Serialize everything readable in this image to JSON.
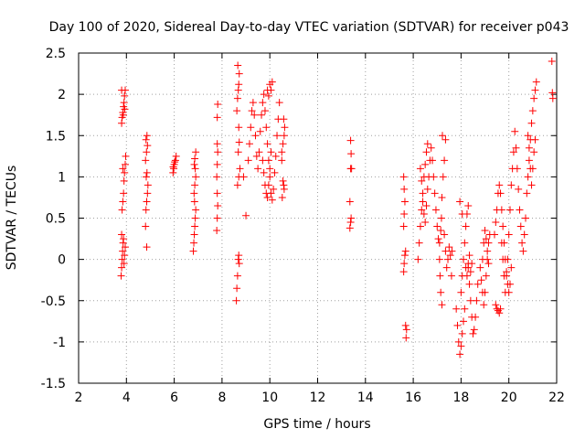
{
  "chart_data": {
    "type": "scatter",
    "title": "Day 100 of 2020, Sidereal Day-to-day VTEC variation (SDTVAR) for receiver p043",
    "xlabel": "GPS time / hours",
    "ylabel": "SDTVAR / TECUs",
    "xlim": [
      2,
      22
    ],
    "ylim": [
      -1.5,
      2.5
    ],
    "x_ticks": [
      2,
      4,
      6,
      8,
      10,
      12,
      14,
      16,
      18,
      20,
      22
    ],
    "x_tick_labels": [
      "2",
      "4",
      "6",
      "8",
      "10",
      "12",
      "14",
      "16",
      "18",
      "20",
      "22"
    ],
    "y_ticks": [
      -1.5,
      -1,
      -0.5,
      0,
      0.5,
      1,
      1.5,
      2,
      2.5
    ],
    "y_tick_labels": [
      "-1.5",
      "-1",
      "-0.5",
      "0",
      "0.5",
      "1",
      "1.5",
      "2",
      "2.5"
    ],
    "grid": true,
    "marker": "+",
    "color": "#ff0000",
    "series": [
      {
        "name": "SDTVAR",
        "points": [
          [
            3.78,
            -0.2
          ],
          [
            3.8,
            -0.1
          ],
          [
            3.82,
            0.0
          ],
          [
            3.84,
            0.1
          ],
          [
            3.86,
            0.2
          ],
          [
            3.88,
            0.25
          ],
          [
            3.8,
            0.3
          ],
          [
            3.9,
            -0.05
          ],
          [
            3.92,
            0.05
          ],
          [
            3.95,
            0.15
          ],
          [
            3.82,
            0.6
          ],
          [
            3.85,
            0.7
          ],
          [
            3.88,
            0.8
          ],
          [
            3.9,
            0.95
          ],
          [
            3.92,
            1.05
          ],
          [
            3.95,
            1.15
          ],
          [
            3.97,
            1.25
          ],
          [
            3.85,
            1.1
          ],
          [
            3.8,
            1.65
          ],
          [
            3.82,
            1.72
          ],
          [
            3.85,
            1.78
          ],
          [
            3.88,
            1.85
          ],
          [
            3.9,
            1.9
          ],
          [
            3.92,
            1.98
          ],
          [
            3.95,
            2.05
          ],
          [
            3.8,
            2.05
          ],
          [
            3.87,
            1.75
          ],
          [
            3.93,
            1.82
          ],
          [
            4.85,
            0.15
          ],
          [
            4.8,
            0.4
          ],
          [
            4.82,
            0.6
          ],
          [
            4.85,
            0.7
          ],
          [
            4.88,
            0.8
          ],
          [
            4.9,
            0.9
          ],
          [
            4.83,
            1.0
          ],
          [
            4.86,
            1.05
          ],
          [
            4.8,
            1.2
          ],
          [
            4.84,
            1.3
          ],
          [
            4.88,
            1.38
          ],
          [
            4.82,
            1.45
          ],
          [
            4.86,
            1.5
          ],
          [
            5.95,
            1.05
          ],
          [
            5.98,
            1.1
          ],
          [
            6.0,
            1.15
          ],
          [
            6.05,
            1.2
          ],
          [
            6.08,
            1.25
          ],
          [
            6.02,
            1.18
          ],
          [
            5.96,
            1.12
          ],
          [
            6.8,
            0.1
          ],
          [
            6.82,
            0.2
          ],
          [
            6.84,
            0.3
          ],
          [
            6.86,
            0.4
          ],
          [
            6.88,
            0.5
          ],
          [
            6.9,
            0.6
          ],
          [
            6.85,
            0.7
          ],
          [
            6.83,
            0.8
          ],
          [
            6.86,
            0.9
          ],
          [
            6.9,
            1.0
          ],
          [
            6.88,
            1.1
          ],
          [
            6.84,
            1.15
          ],
          [
            6.86,
            1.22
          ],
          [
            6.9,
            1.3
          ],
          [
            7.78,
            0.35
          ],
          [
            7.8,
            0.5
          ],
          [
            7.82,
            0.65
          ],
          [
            7.8,
            0.8
          ],
          [
            7.78,
            1.0
          ],
          [
            7.8,
            1.15
          ],
          [
            7.82,
            1.3
          ],
          [
            7.8,
            1.4
          ],
          [
            7.8,
            1.72
          ],
          [
            7.82,
            1.88
          ],
          [
            8.6,
            -0.5
          ],
          [
            8.62,
            -0.35
          ],
          [
            8.65,
            -0.2
          ],
          [
            8.68,
            0.0
          ],
          [
            8.7,
            0.05
          ],
          [
            8.72,
            -0.05
          ],
          [
            8.65,
            0.9
          ],
          [
            8.7,
            1.0
          ],
          [
            8.75,
            1.1
          ],
          [
            8.68,
            1.3
          ],
          [
            8.72,
            1.42
          ],
          [
            8.7,
            1.6
          ],
          [
            8.62,
            1.8
          ],
          [
            8.65,
            1.95
          ],
          [
            8.68,
            2.05
          ],
          [
            8.7,
            2.12
          ],
          [
            8.72,
            2.25
          ],
          [
            8.66,
            2.35
          ],
          [
            8.9,
            1.0
          ],
          [
            9.0,
            0.53
          ],
          [
            9.1,
            1.2
          ],
          [
            9.15,
            1.4
          ],
          [
            9.2,
            1.6
          ],
          [
            9.25,
            1.8
          ],
          [
            9.3,
            1.9
          ],
          [
            9.35,
            1.75
          ],
          [
            9.4,
            1.5
          ],
          [
            9.45,
            1.25
          ],
          [
            9.5,
            1.1
          ],
          [
            9.55,
            1.3
          ],
          [
            9.6,
            1.55
          ],
          [
            9.65,
            1.75
          ],
          [
            9.7,
            1.9
          ],
          [
            9.75,
            2.0
          ],
          [
            9.8,
            1.8
          ],
          [
            9.85,
            1.6
          ],
          [
            9.9,
            1.4
          ],
          [
            9.95,
            1.2
          ],
          [
            10.0,
            1.0
          ],
          [
            10.05,
            0.8
          ],
          [
            10.1,
            0.72
          ],
          [
            10.15,
            0.85
          ],
          [
            10.2,
            1.05
          ],
          [
            10.25,
            1.25
          ],
          [
            10.3,
            1.5
          ],
          [
            10.35,
            1.7
          ],
          [
            10.4,
            1.9
          ],
          [
            9.7,
            1.2
          ],
          [
            9.75,
            1.05
          ],
          [
            9.8,
            0.9
          ],
          [
            9.85,
            0.8
          ],
          [
            9.9,
            0.75
          ],
          [
            9.95,
            0.9
          ],
          [
            10.0,
            1.1
          ],
          [
            10.05,
            1.3
          ],
          [
            9.9,
            2.05
          ],
          [
            10.0,
            2.12
          ],
          [
            10.1,
            2.15
          ],
          [
            10.05,
            2.05
          ],
          [
            9.95,
            1.98
          ],
          [
            10.5,
            1.3
          ],
          [
            10.55,
            1.4
          ],
          [
            10.6,
            1.5
          ],
          [
            10.62,
            1.6
          ],
          [
            10.58,
            1.7
          ],
          [
            10.5,
            1.2
          ],
          [
            10.55,
            0.95
          ],
          [
            10.6,
            0.85
          ],
          [
            10.52,
            0.75
          ],
          [
            10.58,
            0.9
          ],
          [
            13.35,
            0.38
          ],
          [
            13.38,
            0.45
          ],
          [
            13.4,
            0.5
          ],
          [
            13.35,
            0.7
          ],
          [
            13.42,
            1.1
          ],
          [
            13.38,
            1.1
          ],
          [
            13.4,
            1.28
          ],
          [
            13.38,
            1.44
          ],
          [
            15.6,
            -0.15
          ],
          [
            15.62,
            -0.05
          ],
          [
            15.65,
            0.05
          ],
          [
            15.68,
            0.1
          ],
          [
            15.7,
            -0.95
          ],
          [
            15.72,
            -0.85
          ],
          [
            15.68,
            -0.8
          ],
          [
            15.6,
            0.4
          ],
          [
            15.62,
            0.55
          ],
          [
            15.65,
            0.7
          ],
          [
            15.62,
            0.85
          ],
          [
            15.6,
            1.0
          ],
          [
            16.2,
            0.0
          ],
          [
            16.25,
            0.2
          ],
          [
            16.3,
            0.4
          ],
          [
            16.35,
            0.6
          ],
          [
            16.4,
            0.8
          ],
          [
            16.45,
            1.0
          ],
          [
            16.5,
            1.15
          ],
          [
            16.55,
            1.3
          ],
          [
            16.6,
            1.4
          ],
          [
            16.3,
            1.1
          ],
          [
            16.35,
            0.95
          ],
          [
            16.4,
            0.7
          ],
          [
            16.45,
            0.55
          ],
          [
            16.5,
            0.45
          ],
          [
            16.55,
            0.65
          ],
          [
            16.6,
            0.85
          ],
          [
            16.65,
            1.0
          ],
          [
            16.7,
            1.2
          ],
          [
            16.75,
            1.35
          ],
          [
            16.8,
            1.2
          ],
          [
            16.85,
            1.0
          ],
          [
            16.9,
            0.8
          ],
          [
            16.95,
            0.6
          ],
          [
            17.0,
            0.4
          ],
          [
            17.05,
            0.25
          ],
          [
            17.1,
            0.0
          ],
          [
            17.12,
            -0.2
          ],
          [
            17.15,
            -0.4
          ],
          [
            17.2,
            -0.55
          ],
          [
            17.1,
            0.2
          ],
          [
            17.15,
            0.35
          ],
          [
            17.18,
            0.5
          ],
          [
            17.2,
            0.75
          ],
          [
            17.25,
            1.0
          ],
          [
            17.3,
            1.2
          ],
          [
            17.35,
            1.45
          ],
          [
            17.22,
            1.5
          ],
          [
            17.3,
            0.3
          ],
          [
            17.35,
            0.1
          ],
          [
            17.4,
            -0.1
          ],
          [
            17.45,
            0.0
          ],
          [
            17.5,
            0.15
          ],
          [
            17.55,
            0.05
          ],
          [
            17.6,
            -0.2
          ],
          [
            17.62,
            0.1
          ],
          [
            17.8,
            -0.6
          ],
          [
            17.85,
            -0.8
          ],
          [
            17.9,
            -1.0
          ],
          [
            17.95,
            -1.15
          ],
          [
            18.0,
            -1.05
          ],
          [
            18.05,
            -0.9
          ],
          [
            18.1,
            -0.75
          ],
          [
            18.15,
            -0.6
          ],
          [
            18.0,
            -0.4
          ],
          [
            18.05,
            -0.2
          ],
          [
            18.1,
            0.0
          ],
          [
            18.15,
            0.2
          ],
          [
            18.2,
            0.4
          ],
          [
            18.25,
            0.55
          ],
          [
            18.3,
            0.65
          ],
          [
            17.95,
            0.7
          ],
          [
            18.05,
            0.55
          ],
          [
            18.3,
            -0.1
          ],
          [
            18.35,
            -0.3
          ],
          [
            18.4,
            -0.5
          ],
          [
            18.45,
            -0.7
          ],
          [
            18.5,
            -0.9
          ],
          [
            18.55,
            -0.85
          ],
          [
            18.6,
            -0.7
          ],
          [
            18.65,
            -0.5
          ],
          [
            18.7,
            -0.3
          ],
          [
            18.2,
            -0.1
          ],
          [
            18.25,
            -0.2
          ],
          [
            18.3,
            -0.05
          ],
          [
            18.35,
            0.05
          ],
          [
            18.4,
            -0.15
          ],
          [
            18.45,
            -0.05
          ],
          [
            18.8,
            -0.1
          ],
          [
            18.85,
            -0.25
          ],
          [
            18.9,
            -0.4
          ],
          [
            18.95,
            -0.55
          ],
          [
            19.0,
            -0.4
          ],
          [
            19.05,
            -0.2
          ],
          [
            19.1,
            0.0
          ],
          [
            19.15,
            0.2
          ],
          [
            19.2,
            0.3
          ],
          [
            18.9,
            0.0
          ],
          [
            18.95,
            0.2
          ],
          [
            19.0,
            0.35
          ],
          [
            19.05,
            0.25
          ],
          [
            19.1,
            0.1
          ],
          [
            19.15,
            -0.05
          ],
          [
            19.45,
            -0.55
          ],
          [
            19.5,
            -0.6
          ],
          [
            19.55,
            -0.62
          ],
          [
            19.6,
            -0.65
          ],
          [
            19.65,
            -0.6
          ],
          [
            19.4,
            0.3
          ],
          [
            19.45,
            0.45
          ],
          [
            19.5,
            0.6
          ],
          [
            19.55,
            0.8
          ],
          [
            19.6,
            0.9
          ],
          [
            19.65,
            0.8
          ],
          [
            19.7,
            0.6
          ],
          [
            19.75,
            0.4
          ],
          [
            19.8,
            0.2
          ],
          [
            19.85,
            0.0
          ],
          [
            19.9,
            -0.15
          ],
          [
            19.95,
            -0.3
          ],
          [
            20.0,
            -0.4
          ],
          [
            20.05,
            -0.3
          ],
          [
            20.1,
            -0.1
          ],
          [
            19.7,
            0.2
          ],
          [
            19.75,
            0.0
          ],
          [
            19.8,
            -0.2
          ],
          [
            19.85,
            -0.4
          ],
          [
            19.9,
            -0.2
          ],
          [
            19.95,
            0.0
          ],
          [
            20.0,
            0.3
          ],
          [
            20.05,
            0.6
          ],
          [
            20.1,
            0.9
          ],
          [
            20.15,
            1.1
          ],
          [
            20.2,
            1.3
          ],
          [
            20.25,
            1.55
          ],
          [
            20.3,
            1.35
          ],
          [
            20.35,
            1.1
          ],
          [
            20.4,
            0.85
          ],
          [
            20.45,
            0.6
          ],
          [
            20.5,
            0.4
          ],
          [
            20.55,
            0.2
          ],
          [
            20.6,
            0.1
          ],
          [
            20.65,
            0.3
          ],
          [
            20.7,
            0.5
          ],
          [
            20.75,
            0.8
          ],
          [
            20.8,
            1.0
          ],
          [
            20.85,
            1.2
          ],
          [
            20.9,
            1.45
          ],
          [
            20.95,
            1.65
          ],
          [
            21.0,
            1.8
          ],
          [
            21.05,
            1.95
          ],
          [
            21.1,
            2.05
          ],
          [
            21.15,
            2.15
          ],
          [
            20.8,
            1.5
          ],
          [
            20.85,
            1.35
          ],
          [
            20.9,
            1.1
          ],
          [
            20.95,
            0.9
          ],
          [
            21.0,
            1.1
          ],
          [
            21.05,
            1.3
          ],
          [
            21.1,
            1.45
          ],
          [
            21.8,
            2.4
          ],
          [
            21.82,
            2.02
          ],
          [
            21.84,
            1.95
          ]
        ]
      }
    ]
  }
}
